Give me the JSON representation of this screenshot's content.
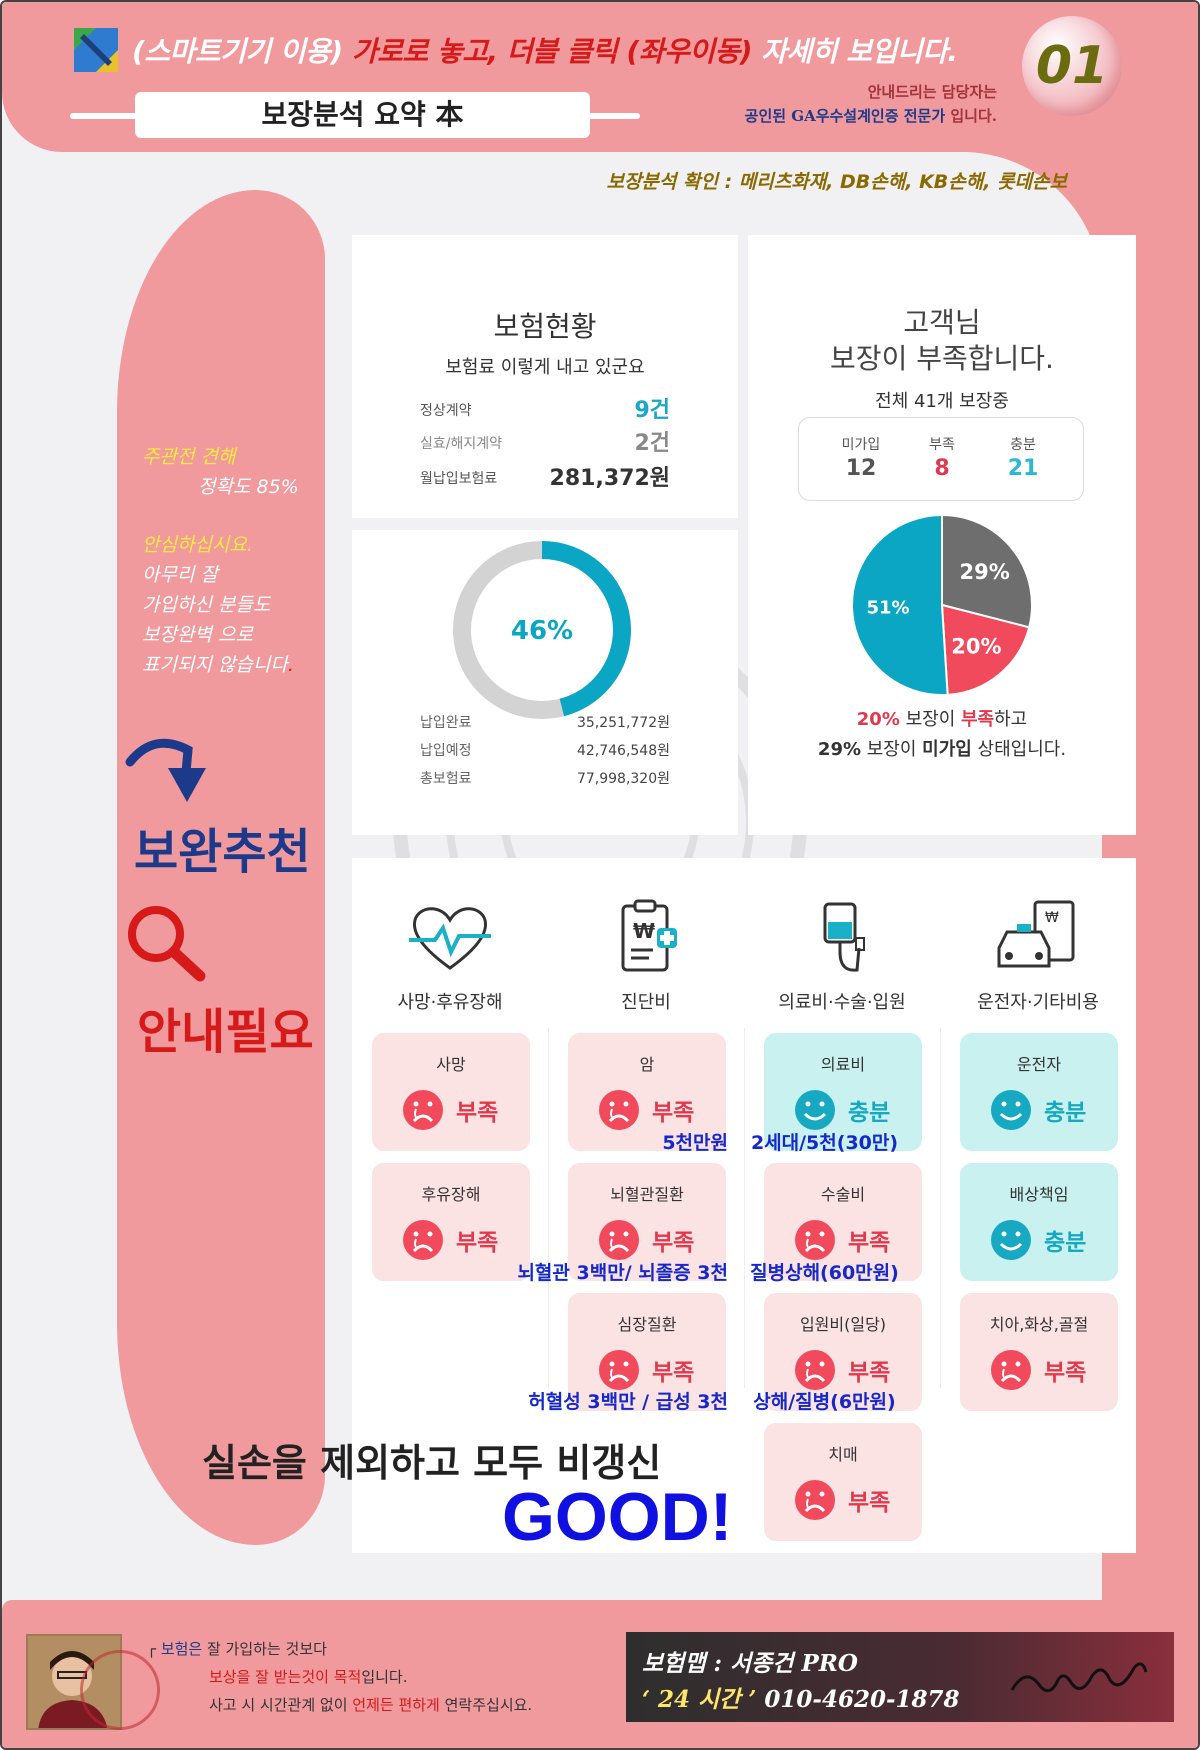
{
  "header": {
    "headline_prefix": "(스마트기기 이용) ",
    "headline_red": "가로로 놓고, 더블 클릭 (좌우이동)",
    "headline_suffix": " 자세히 보입니다.",
    "title": "보장분석 요약 本",
    "guide_line1": "안내드리는 담당자는",
    "guide_line2_blue": "공인된 GA우수설계인증 전문가",
    "guide_line2_suffix": " 입니다.",
    "badge": "01",
    "confirm": "보장분석 확인 : 메리츠화재, DB손해, KB손해, 롯데손보"
  },
  "left_panel": {
    "opinion_title": "주관전 견해",
    "opinion_value": "정확도 85%",
    "msg_line1": "안심하십시요.",
    "msg_line2": "아무리 잘",
    "msg_line3": "가입하신 분들도",
    "msg_line4": "보장완벽 으로",
    "msg_line5": "표기되지 않습니다",
    "msg_dot": ".",
    "reco": "보완추천",
    "need": "안내필요"
  },
  "insurance_status": {
    "title": "보험현황",
    "subtitle": "보험료 이렇게 내고 있군요",
    "rows": [
      {
        "label": "정상계약",
        "value": "9건",
        "color": "#1aa6c9"
      },
      {
        "label": "실효/해지계약",
        "value": "2건",
        "color": "#888888"
      },
      {
        "label": "월납입보험료",
        "value": "281,372원",
        "color": "#333333"
      }
    ]
  },
  "payment": {
    "percent_label": "46%",
    "percent": 46,
    "rows": [
      {
        "label": "납입완료",
        "value": "35,251,772원"
      },
      {
        "label": "납입예정",
        "value": "42,746,548원"
      },
      {
        "label": "총보험료",
        "value": "77,998,320원"
      }
    ],
    "colors": {
      "done": "#0aa6c4",
      "remain": "#d3d3d3"
    }
  },
  "coverage": {
    "title_line1": "고객님",
    "title_line2": "보장이 부족합니다.",
    "subtitle": "전체 41개 보장중",
    "counts": [
      {
        "label": "미가입",
        "value": "12",
        "color": "#555555"
      },
      {
        "label": "부족",
        "value": "8",
        "color": "#e0394d"
      },
      {
        "label": "충분",
        "value": "21",
        "color": "#2bb8d6"
      }
    ],
    "pie": [
      {
        "label": "51%",
        "value": 51,
        "color": "#0aa6c4"
      },
      {
        "label": "29%",
        "value": 29,
        "color": "#6e6e6e"
      },
      {
        "label": "20%",
        "value": 20,
        "color": "#f04a5c"
      }
    ],
    "summary1_pct": "20%",
    "summary1_mid": " 보장이 ",
    "summary1_bold": "부족",
    "summary1_end": "하고",
    "summary2_pct": "29%",
    "summary2_mid": " 보장이 ",
    "summary2_bold": "미가입",
    "summary2_end": " 상태입니다."
  },
  "categories": [
    {
      "label": "사망·후유장해",
      "icon": "heart-monitor-icon"
    },
    {
      "label": "진단비",
      "icon": "clipboard-medical-icon"
    },
    {
      "label": "의료비·수술·입원",
      "icon": "iv-drip-icon"
    },
    {
      "label": "운전자·기타비용",
      "icon": "car-document-icon"
    }
  ],
  "tiles": {
    "death": {
      "name": "사망",
      "status": "부족"
    },
    "disability": {
      "name": "후유장해",
      "status": "부족"
    },
    "cancer": {
      "name": "암",
      "status": "부족",
      "note": "5천만원"
    },
    "cerebro": {
      "name": "뇌혈관질환",
      "status": "부족",
      "note": "뇌혈관 3백만/ 뇌졸증 3천"
    },
    "heart": {
      "name": "심장질환",
      "status": "부족",
      "note": "허혈성 3백만 / 급성 3천"
    },
    "medical": {
      "name": "의료비",
      "status": "충분",
      "note": "2세대/5천(30만)"
    },
    "surgery": {
      "name": "수술비",
      "status": "부족",
      "note": "질병상해(60만원)"
    },
    "hospital": {
      "name": "입원비(일당)",
      "status": "부족",
      "note": "상해/질병(6만원)"
    },
    "dementia": {
      "name": "치매",
      "status": "부족"
    },
    "driver": {
      "name": "운전자",
      "status": "충분"
    },
    "liability": {
      "name": "배상책임",
      "status": "충분"
    },
    "dental": {
      "name": "치아,화상,골절",
      "status": "부족"
    }
  },
  "final": {
    "text": "실손을 제외하고 모두 비갱신",
    "good": "GOOD!"
  },
  "footer": {
    "line1_blue": "보험은",
    "line1_rest": " 잘 가입하는 것보다",
    "line2_red": "보상을 잘 받는것이 목적",
    "line2_rest": "입니다.",
    "line3_pre": "사고 시 시간관계 없이 ",
    "line3_red": "언제든 편하게",
    "line3_rest": " 연락주십시요.",
    "contact_name": "보험맵 : 서종건 PRO",
    "contact_24": "‘ 24 시간 ’",
    "contact_phone": " 010-4620-1878"
  }
}
